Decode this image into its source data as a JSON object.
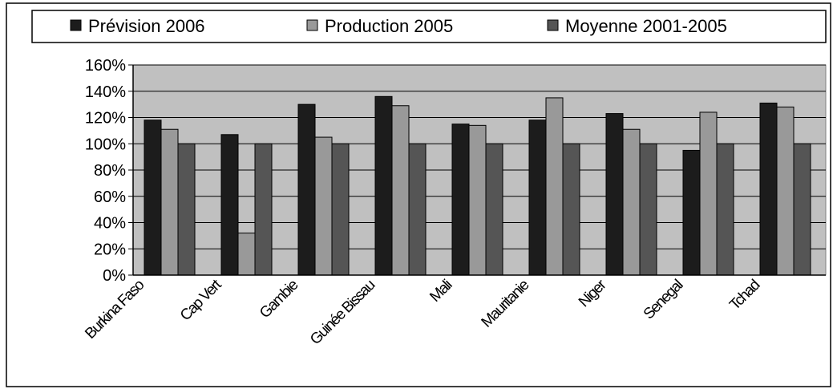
{
  "chart_data": {
    "type": "bar",
    "categories": [
      "Burkina Faso",
      "Cap Vert",
      "Gambie",
      "Guinée Bissau",
      "Mali",
      "Mauritanie",
      "Niger",
      "Senegal",
      "Tchad"
    ],
    "series": [
      {
        "name": "Prévision 2006",
        "values": [
          118,
          107,
          130,
          136,
          115,
          118,
          123,
          95,
          131
        ],
        "color": "#1c1c1c"
      },
      {
        "name": "Production 2005",
        "values": [
          111,
          32,
          105,
          129,
          114,
          135,
          111,
          124,
          128
        ],
        "color": "#999999"
      },
      {
        "name": "Moyenne 2001-2005",
        "values": [
          100,
          100,
          100,
          100,
          100,
          100,
          100,
          100,
          100
        ],
        "color": "#555555"
      }
    ],
    "yticks": [
      "0%",
      "20%",
      "40%",
      "60%",
      "80%",
      "100%",
      "120%",
      "140%",
      "160%"
    ],
    "ylim": [
      0,
      160
    ],
    "unit": "%",
    "grid": true,
    "legend_position": "top",
    "plot_background": "#c0c0c0"
  }
}
